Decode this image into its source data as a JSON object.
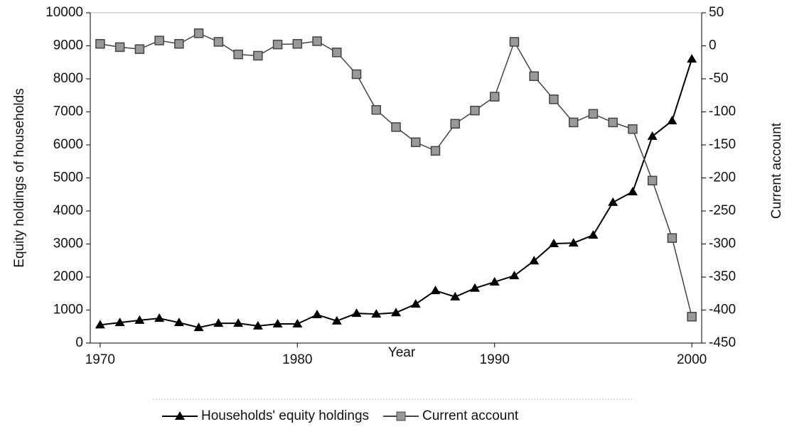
{
  "chart_data": {
    "type": "line",
    "x_label": "Year",
    "y_label": "Equity holdings of households",
    "y2_label": "Current account",
    "x": [
      1970,
      1971,
      1972,
      1973,
      1974,
      1975,
      1976,
      1977,
      1978,
      1979,
      1980,
      1981,
      1982,
      1983,
      1984,
      1985,
      1986,
      1987,
      1988,
      1989,
      1990,
      1991,
      1992,
      1993,
      1994,
      1995,
      1996,
      1997,
      1998,
      1999,
      2000
    ],
    "series": [
      {
        "name": "Households' equity holdings",
        "color": "#000000",
        "marker": "triangle",
        "values": [
          550,
          620,
          690,
          750,
          620,
          470,
          600,
          600,
          520,
          580,
          580,
          860,
          670,
          900,
          880,
          920,
          1180,
          1590,
          1400,
          1660,
          1850,
          2040,
          2490,
          3010,
          3030,
          3270,
          4260,
          4580,
          6260,
          6730,
          8600
        ]
      },
      {
        "name": "Current account",
        "color": "#444444",
        "marker": "square",
        "axis": "y2",
        "values": [
          3,
          -2,
          -5,
          8,
          3,
          19,
          6,
          -13,
          -15,
          2,
          3,
          7,
          -10,
          -43,
          -97,
          -123,
          -146,
          -159,
          -118,
          -98,
          -77,
          6,
          -46,
          -81,
          -116,
          -103,
          -116,
          -126,
          -204,
          -291,
          -410
        ]
      }
    ],
    "xlim": [
      1969.5,
      2000.5
    ],
    "xticks": [
      1970,
      1980,
      1990,
      2000
    ],
    "ylim": [
      0,
      10000
    ],
    "yticks": [
      0,
      1000,
      2000,
      3000,
      4000,
      5000,
      6000,
      7000,
      8000,
      9000,
      10000
    ],
    "y2lim": [
      -450,
      50
    ],
    "y2ticks": [
      -450,
      -400,
      -350,
      -300,
      -250,
      -200,
      -150,
      -100,
      -50,
      0,
      50
    ],
    "legend": "bottom"
  }
}
